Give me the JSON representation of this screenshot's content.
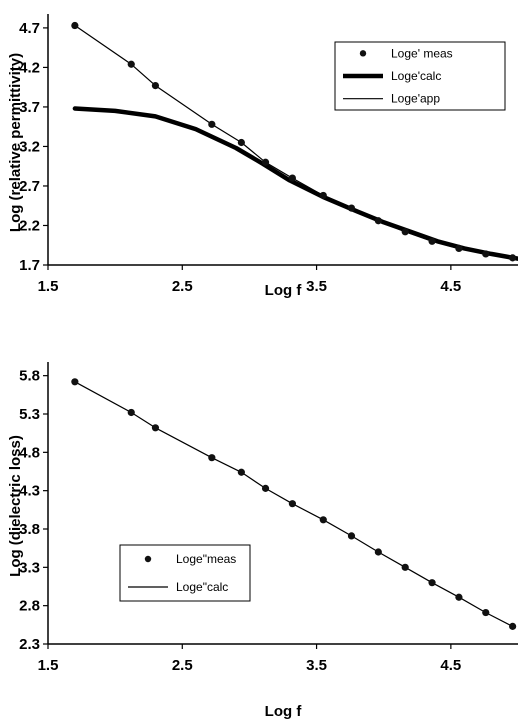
{
  "chart_data": [
    {
      "type": "line",
      "xlabel": "Log f",
      "ylabel": "Log (relative permittivity)",
      "xlim": [
        1.5,
        5.0
      ],
      "ylim": [
        1.7,
        4.8
      ],
      "xticks": [
        "1.5",
        "2.5",
        "3.5",
        "4.5"
      ],
      "yticks": [
        "1.7",
        "2.2",
        "2.7",
        "3.2",
        "3.7",
        "4.2",
        "4.7"
      ],
      "grid": false,
      "legend_position": "top-right",
      "series": [
        {
          "name": "Loge' meas",
          "style": "markers",
          "x": [
            1.7,
            2.12,
            2.3,
            2.72,
            2.94,
            3.12,
            3.32,
            3.55,
            3.76,
            3.96,
            4.16,
            4.36,
            4.56,
            4.76,
            4.96
          ],
          "y": [
            4.73,
            4.24,
            3.97,
            3.48,
            3.25,
            3.0,
            2.8,
            2.58,
            2.42,
            2.26,
            2.12,
            2.0,
            1.91,
            1.84,
            1.79
          ]
        },
        {
          "name": "Loge'calc",
          "style": "thick-line",
          "x": [
            1.7,
            2.0,
            2.3,
            2.6,
            2.9,
            3.1,
            3.3,
            3.55,
            3.8,
            4.0,
            4.2,
            4.4,
            4.6,
            4.8,
            5.0
          ],
          "y": [
            3.68,
            3.65,
            3.58,
            3.42,
            3.18,
            2.98,
            2.77,
            2.56,
            2.38,
            2.24,
            2.12,
            2.0,
            1.91,
            1.84,
            1.78
          ]
        },
        {
          "name": "Loge'app",
          "style": "thin-line",
          "x": [
            1.7,
            2.12,
            2.3,
            2.72,
            2.94,
            3.12,
            3.32,
            3.55,
            3.76,
            3.96,
            4.16,
            4.36,
            4.56,
            4.76,
            5.0
          ],
          "y": [
            4.73,
            4.24,
            3.97,
            3.48,
            3.25,
            3.0,
            2.8,
            2.58,
            2.42,
            2.26,
            2.12,
            2.0,
            1.91,
            1.84,
            1.78
          ]
        }
      ]
    },
    {
      "type": "line",
      "xlabel": "Log f",
      "ylabel": "Log (dielectric loss)",
      "xlim": [
        1.5,
        5.0
      ],
      "ylim": [
        2.3,
        5.9
      ],
      "xticks": [
        "1.5",
        "2.5",
        "3.5",
        "4.5"
      ],
      "yticks": [
        "2.3",
        "2.8",
        "3.3",
        "3.8",
        "4.3",
        "4.8",
        "5.3",
        "5.8"
      ],
      "grid": false,
      "legend_position": "lower-left",
      "series": [
        {
          "name": "Loge\"meas",
          "style": "markers",
          "x": [
            1.7,
            2.12,
            2.3,
            2.72,
            2.94,
            3.12,
            3.32,
            3.55,
            3.76,
            3.96,
            4.16,
            4.36,
            4.56,
            4.76,
            4.96
          ],
          "y": [
            5.72,
            5.32,
            5.12,
            4.73,
            4.54,
            4.33,
            4.13,
            3.92,
            3.71,
            3.5,
            3.3,
            3.1,
            2.91,
            2.71,
            2.53
          ]
        },
        {
          "name": "Loge\"calc",
          "style": "thin-line",
          "x": [
            1.7,
            2.12,
            2.3,
            2.72,
            2.94,
            3.12,
            3.32,
            3.55,
            3.76,
            3.96,
            4.16,
            4.36,
            4.56,
            4.76,
            4.96
          ],
          "y": [
            5.72,
            5.32,
            5.12,
            4.73,
            4.54,
            4.33,
            4.13,
            3.92,
            3.71,
            3.5,
            3.3,
            3.1,
            2.91,
            2.71,
            2.53
          ]
        }
      ]
    }
  ]
}
